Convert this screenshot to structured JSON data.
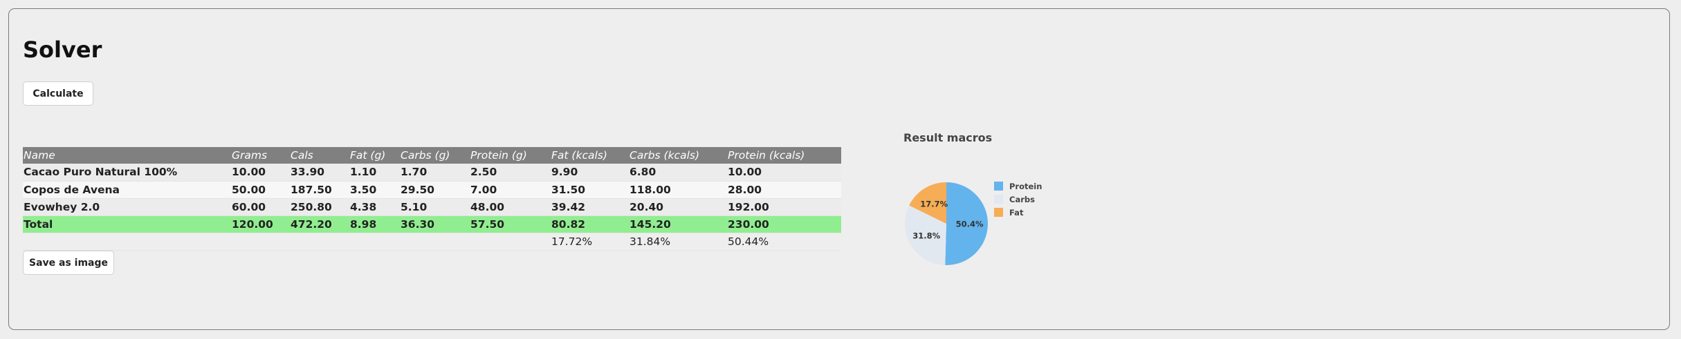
{
  "page": {
    "title": "Solver",
    "calculate_label": "Calculate",
    "save_label": "Save as image"
  },
  "table": {
    "columns": [
      "Name",
      "Grams",
      "Cals",
      "Fat (g)",
      "Carbs (g)",
      "Protein (g)",
      "Fat (kcals)",
      "Carbs (kcals)",
      "Protein (kcals)"
    ],
    "rows": [
      [
        "Cacao Puro Natural 100%",
        "10.00",
        "33.90",
        "1.10",
        "1.70",
        "2.50",
        "9.90",
        "6.80",
        "10.00"
      ],
      [
        "Copos de Avena",
        "50.00",
        "187.50",
        "3.50",
        "29.50",
        "7.00",
        "31.50",
        "118.00",
        "28.00"
      ],
      [
        "Evowhey 2.0",
        "60.00",
        "250.80",
        "4.38",
        "5.10",
        "48.00",
        "39.42",
        "20.40",
        "192.00"
      ]
    ],
    "total": [
      "Total",
      "120.00",
      "472.20",
      "8.98",
      "36.30",
      "57.50",
      "80.82",
      "145.20",
      "230.00"
    ],
    "percentages": [
      "",
      "",
      "",
      "",
      "",
      "",
      "17.72%",
      "31.84%",
      "50.44%"
    ]
  },
  "chart_data": {
    "type": "pie",
    "title": "Result macros",
    "labels": [
      "Protein",
      "Carbs",
      "Fat"
    ],
    "values": [
      50.4,
      31.8,
      17.7
    ],
    "value_labels": [
      "50.4%",
      "31.8%",
      "17.7%"
    ],
    "colors": [
      "#63b3ed",
      "#e2e8f0",
      "#f6ad55"
    ],
    "legend": "right"
  }
}
